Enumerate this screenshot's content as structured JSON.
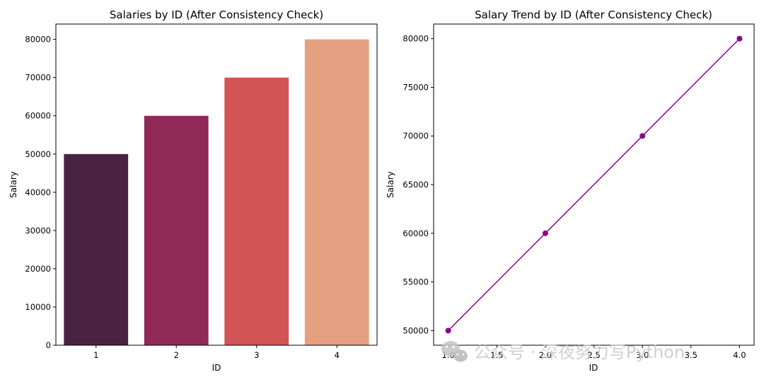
{
  "chart_data": [
    {
      "type": "bar",
      "title": "Salaries by ID (After Consistency Check)",
      "xlabel": "ID",
      "ylabel": "Salary",
      "categories": [
        "1",
        "2",
        "3",
        "4"
      ],
      "values": [
        50000,
        60000,
        70000,
        80000
      ],
      "colors": [
        "#4a2342",
        "#8e2958",
        "#d25455",
        "#e4a181"
      ],
      "ylim": [
        0,
        84000
      ],
      "yticks": [
        0,
        10000,
        20000,
        30000,
        40000,
        50000,
        60000,
        70000,
        80000
      ],
      "grid": false
    },
    {
      "type": "line",
      "title": "Salary Trend by ID (After Consistency Check)",
      "xlabel": "ID",
      "ylabel": "Salary",
      "x": [
        1,
        2,
        3,
        4
      ],
      "y": [
        50000,
        60000,
        70000,
        80000
      ],
      "color": "#8b058b",
      "marker": "circle",
      "xlim": [
        0.85,
        4.15
      ],
      "ylim": [
        48500,
        81500
      ],
      "xticks": [
        "1.0",
        "1.5",
        "2.0",
        "2.5",
        "3.0",
        "3.5",
        "4.0"
      ],
      "yticks": [
        50000,
        55000,
        60000,
        65000,
        70000,
        75000,
        80000
      ],
      "grid": false
    }
  ],
  "watermark": {
    "text": "公众号 · 深夜努力写Python",
    "icon": "wechat-icon"
  }
}
